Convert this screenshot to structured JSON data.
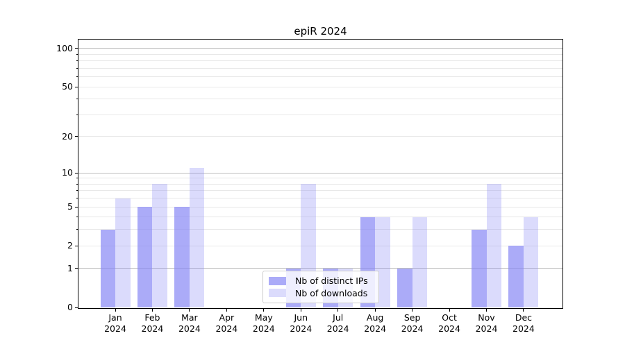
{
  "chart": {
    "title": "epiR 2024",
    "background_color": "#ffffff",
    "axis_color": "#000000",
    "grid_major_color": "#bdbdbd",
    "grid_minor_color": "#e8e8e8"
  },
  "legend": {
    "items": [
      {
        "label": "Nb of distinct IPs",
        "color": "#8787f5",
        "alpha": 0.7
      },
      {
        "label": "Nb of downloads",
        "color": "#8787f5",
        "alpha": 0.3
      }
    ]
  },
  "chart_data": {
    "type": "bar",
    "title": "epiR 2024",
    "categories": [
      "Jan 2024",
      "Feb 2024",
      "Mar 2024",
      "Apr 2024",
      "May 2024",
      "Jun 2024",
      "Jul 2024",
      "Aug 2024",
      "Sep 2024",
      "Oct 2024",
      "Nov 2024",
      "Dec 2024"
    ],
    "months": [
      "Jan",
      "Feb",
      "Mar",
      "Apr",
      "May",
      "Jun",
      "Jul",
      "Aug",
      "Sep",
      "Oct",
      "Nov",
      "Dec"
    ],
    "year": "2024",
    "series": [
      {
        "name": "Nb of distinct IPs",
        "color": "#8787f5",
        "alpha": 0.7,
        "values": [
          3,
          5,
          5,
          0,
          0,
          1,
          1,
          4,
          1,
          0,
          3,
          2
        ]
      },
      {
        "name": "Nb of downloads",
        "color": "#8787f5",
        "alpha": 0.3,
        "values": [
          6,
          8,
          11,
          0,
          0,
          8,
          1,
          4,
          4,
          0,
          8,
          4
        ]
      }
    ],
    "xlabel": "",
    "ylabel": "",
    "yscale": "log1p",
    "ylim": [
      0,
      118
    ],
    "yticks": [
      0,
      1,
      2,
      5,
      10,
      20,
      50,
      100
    ],
    "minor_yticks": [
      3,
      4,
      6,
      7,
      8,
      9,
      30,
      40,
      60,
      70,
      80,
      90
    ],
    "grid": true,
    "legend_position": "lower center"
  }
}
